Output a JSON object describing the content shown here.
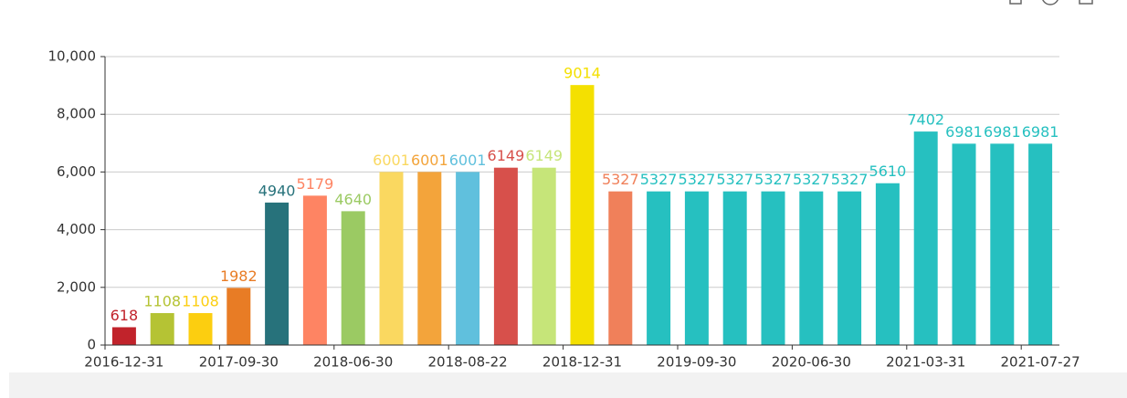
{
  "chart_data": {
    "type": "bar",
    "categories": [
      "2016-12-31",
      null,
      null,
      "2017-09-30",
      null,
      null,
      "2018-06-30",
      null,
      null,
      "2018-08-22",
      null,
      null,
      "2018-12-31",
      null,
      null,
      "2019-09-30",
      null,
      null,
      "2020-06-30",
      null,
      null,
      "2021-03-31",
      null,
      null,
      "2021-07-27"
    ],
    "values": [
      618,
      1108,
      1108,
      1982,
      4940,
      5179,
      4640,
      6001,
      6001,
      6001,
      6149,
      6149,
      9014,
      5327,
      5327,
      5327,
      5327,
      5327,
      5327,
      5327,
      5610,
      7402,
      6981,
      6981,
      6981
    ],
    "colors": [
      "#c1232b",
      "#b5c334",
      "#fcce10",
      "#e87c25",
      "#27727b",
      "#fe8463",
      "#9bca63",
      "#fad860",
      "#f3a43b",
      "#60c0dd",
      "#d7504b",
      "#c6e579",
      "#f4e001",
      "#f0805a",
      "#26c0c0",
      "#26c0c0",
      "#26c0c0",
      "#26c0c0",
      "#26c0c0",
      "#26c0c0",
      "#26c0c0",
      "#26c0c0",
      "#26c0c0",
      "#26c0c0",
      "#26c0c0"
    ],
    "ylim": [
      0,
      10000
    ],
    "yticks": [
      0,
      {
        "value": 2000,
        "label": "2,000"
      },
      {
        "value": 4000,
        "label": "4,000"
      },
      {
        "value": 6000,
        "label": "6,000"
      },
      {
        "value": 8000,
        "label": "8,000"
      },
      {
        "value": 10000,
        "label": "10,000"
      }
    ],
    "grid": true
  }
}
